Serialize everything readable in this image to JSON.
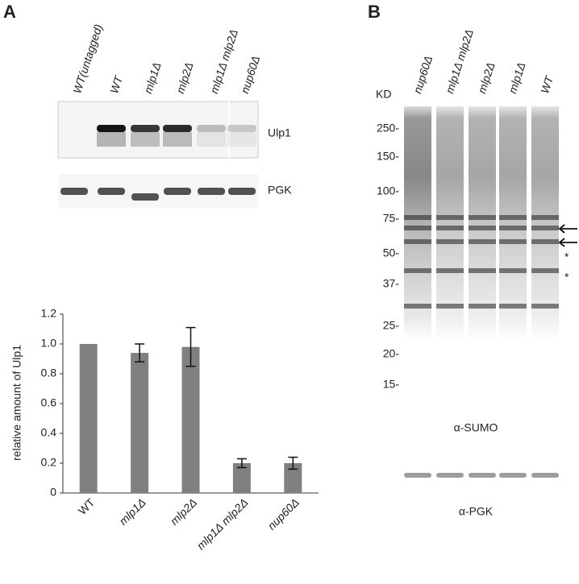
{
  "panel_a": {
    "label": "A",
    "lanes": [
      "WT(untagged)",
      "WT",
      "mlp1Δ",
      "mlp2Δ",
      "mlp1Δ mlp2Δ",
      "nup60Δ"
    ],
    "blots": [
      "Ulp1",
      "PGK"
    ]
  },
  "panel_b": {
    "label": "B",
    "lanes": [
      "nup60Δ",
      "mlp1Δ mlp2Δ",
      "mlp2Δ",
      "mlp1Δ",
      "WT"
    ],
    "unit": "KD",
    "markers": [
      "250-",
      "150-",
      "100-",
      "75-",
      "50-",
      "37-",
      "25-",
      "20-",
      "15-"
    ],
    "asterisks": [
      "*",
      "*"
    ],
    "blots": [
      "α-SUMO",
      "α-PGK"
    ]
  },
  "chart_data": {
    "type": "bar",
    "ylabel": "relative amount of Ulp1",
    "categories": [
      "WT",
      "mlp1Δ",
      "mlp2Δ",
      "mlp1Δ mlp2Δ",
      "nup60Δ"
    ],
    "values": [
      1.0,
      0.94,
      0.98,
      0.2,
      0.2
    ],
    "errors": [
      null,
      0.06,
      0.13,
      0.03,
      0.04
    ],
    "color": "#808080",
    "ylim": [
      0,
      1.2
    ],
    "yticks": [
      0,
      0.2,
      0.4,
      0.6,
      0.8,
      {
        "value": 1.0,
        "label": "1.0"
      },
      1.2
    ]
  }
}
